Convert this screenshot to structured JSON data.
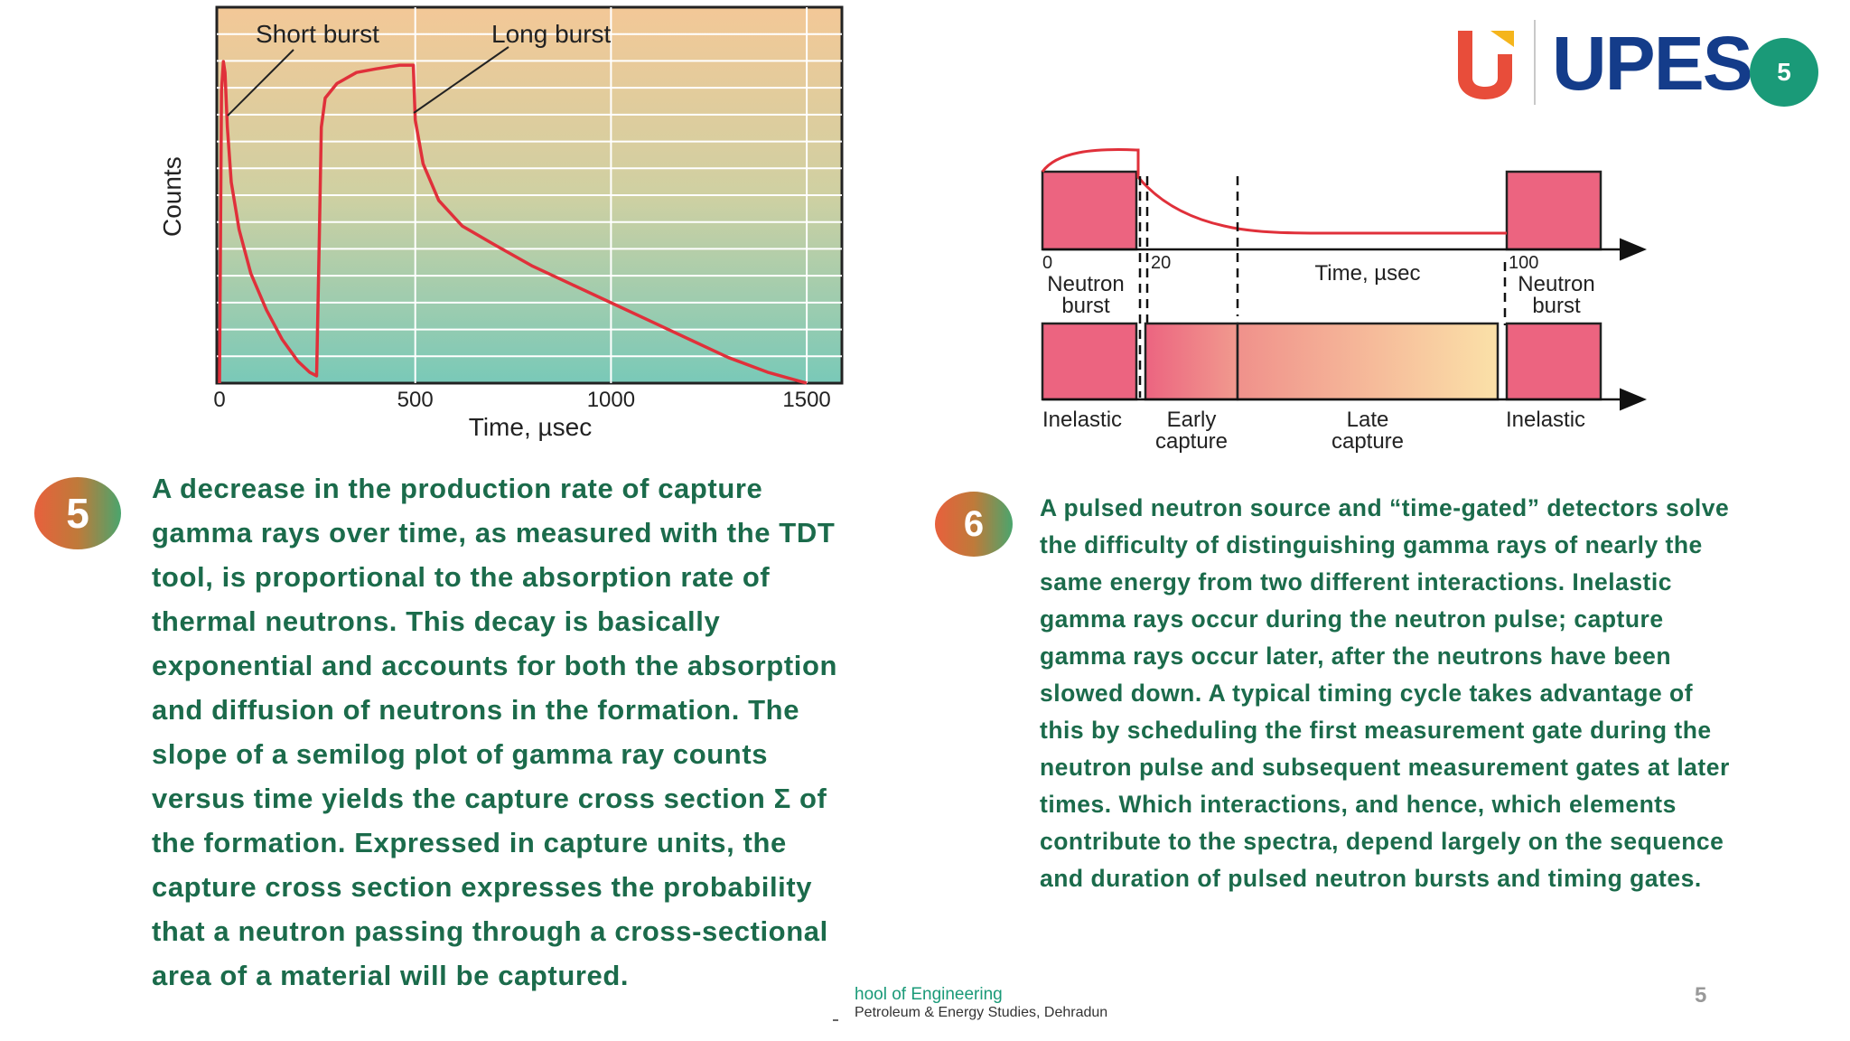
{
  "chart_data": [
    {
      "type": "line",
      "xlabel": "Time, µsec",
      "ylabel": "Counts",
      "xlim": [
        0,
        1600
      ],
      "xticks": [
        "0",
        "500",
        "1000",
        "1500"
      ],
      "grid": true,
      "annotations": [
        "Short burst",
        "Long burst"
      ],
      "series": [
        {
          "x": [
            0,
            5,
            10,
            14,
            20,
            30,
            50,
            80,
            120,
            160,
            200,
            230,
            248,
            255,
            260,
            270,
            300,
            350,
            400,
            460,
            495,
            500,
            520,
            560,
            620,
            700,
            800,
            900,
            1000,
            1100,
            1200,
            1300,
            1400,
            1500
          ],
          "y": [
            0,
            80,
            88,
            85,
            70,
            55,
            42,
            30,
            20,
            12,
            6,
            3,
            2,
            40,
            70,
            78,
            82,
            85,
            86,
            87,
            87,
            72,
            60,
            50,
            43,
            38,
            32,
            27,
            22,
            17,
            12,
            7,
            3,
            0
          ]
        }
      ]
    },
    {
      "type": "timing-diagram",
      "xlabel": "Time, µsec",
      "ticks": [
        "0",
        "20",
        "100"
      ],
      "burst_labels": [
        "Neutron burst",
        "Neutron burst"
      ],
      "gates": [
        "Inelastic",
        "Early capture",
        "Late capture",
        "Inelastic"
      ],
      "curve": [
        0.98,
        1.0,
        1.0,
        0.85,
        0.7,
        0.6,
        0.55,
        0.55,
        0.55
      ]
    }
  ],
  "chart1_text": {
    "short_burst": "Short burst",
    "long_burst": "Long burst",
    "ylabel": "Counts",
    "xlabel": "Time, µsec",
    "ticks": [
      "0",
      "500",
      "1000",
      "1500"
    ]
  },
  "chart2_text": {
    "tick0": "0",
    "tick20": "20",
    "tick100": "100",
    "axis_label": "Time, µsec",
    "neutron_burst_left_1": "Neutron",
    "neutron_burst_left_2": "burst",
    "neutron_burst_right_1": "Neutron",
    "neutron_burst_right_2": "burst",
    "inelastic_left": "Inelastic",
    "early_1": "Early",
    "early_2": "capture",
    "late_1": "Late",
    "late_2": "capture",
    "inelastic_right": "Inelastic"
  },
  "logo": {
    "word": "UPES"
  },
  "slide_badge": "5",
  "badges": {
    "left": "5",
    "right": "6"
  },
  "paragraphs": {
    "left": "A decrease in the production rate of capture gamma rays over time, as measured with the TDT tool, is proportional to the absorption rate of thermal neutrons. This decay is basically exponential and accounts for both the absorption and diffusion of neutrons in the formation. The slope of a semilog plot of gamma ray counts versus time yields the capture cross section Σ of the formation. Expressed in capture units, the capture cross section expresses the probability that a neutron passing through a cross-sectional area of a material will be captured.",
    "right": "A pulsed neutron source and “time-gated” detectors solve the difficulty of distinguishing gamma rays of nearly the same energy from two different interactions. Inelastic gamma rays occur during the neutron pulse; capture gamma rays occur later, after the neutrons have been slowed down. A typical timing cycle takes advantage of this by scheduling the first measurement gate during the neutron pulse and subsequent measurement gates at later times. Which interactions, and hence, which elements contribute to the spectra, depend largely on the sequence and duration of pulsed neutron bursts and timing gates."
  },
  "footer": {
    "line1": "hool of Engineering",
    "line2": "Petroleum & Energy Studies, Dehradun",
    "page": "5"
  },
  "colors": {
    "curve_red": "#e0303a",
    "text_green": "#1b6b4b",
    "badge_teal": "#1a9a78",
    "logo_blue": "#143c8a",
    "gate_pink": "#e9607a"
  }
}
